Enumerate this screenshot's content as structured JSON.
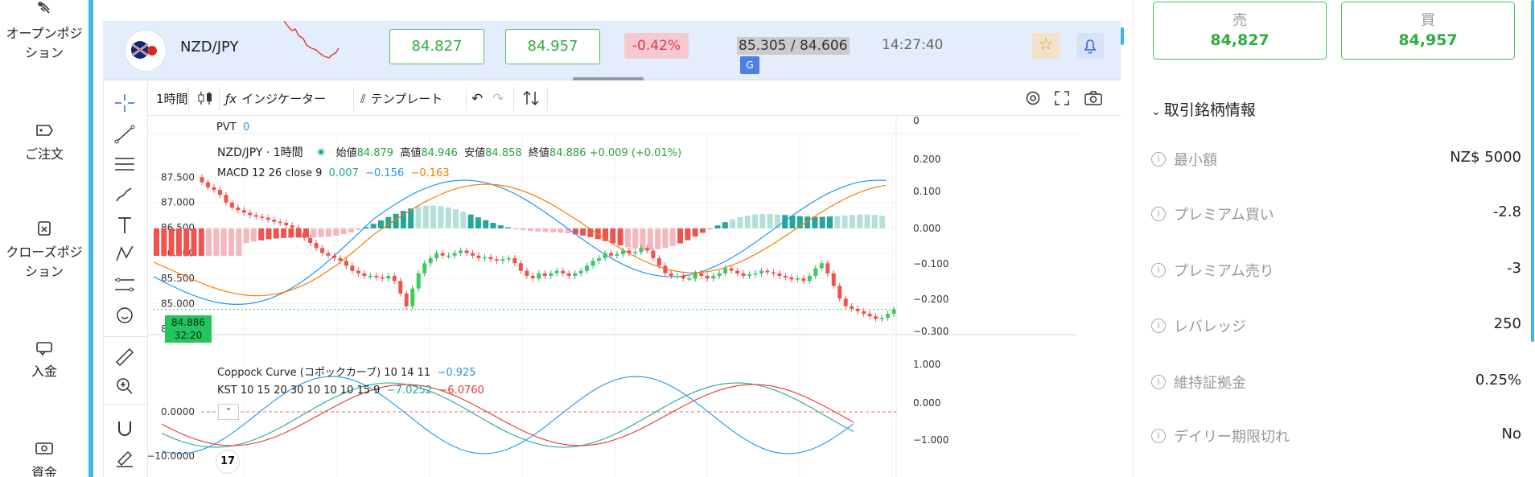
{
  "nav": {
    "items": [
      {
        "label": "オープンポジ\nション",
        "icon": "open-position-icon"
      },
      {
        "label": "ご注文",
        "icon": "order-icon"
      },
      {
        "label": "クローズポジ\nション",
        "icon": "close-position-icon"
      },
      {
        "label": "入金",
        "icon": "deposit-icon"
      },
      {
        "label": "資金",
        "icon": "funds-icon"
      }
    ]
  },
  "instrument": {
    "symbol": "NZD/JPY",
    "sell": "84.827",
    "buy": "84.957",
    "change": "-0.42%",
    "range": "85.305 / 84.606",
    "time": "14:27:40",
    "translate_icon": "G"
  },
  "toolbar": {
    "interval": "1時間",
    "indicators": "インジケーター",
    "templates": "テンプレート"
  },
  "legend": {
    "pvt_label": "PVT",
    "pvt_value": "0",
    "symbol": "NZD/JPY",
    "interval": "1時間",
    "open_label": "始値",
    "open": "84.879",
    "high_label": "高値",
    "high": "84.946",
    "low_label": "安値",
    "low": "84.858",
    "close_label": "終値",
    "close": "84.886",
    "delta": "+0.009 (+0.01%)",
    "macd_label": "MACD",
    "macd_params": "12 26 close 9",
    "macd_v1": "0.007",
    "macd_v2": "−0.156",
    "macd_v3": "−0.163",
    "coppock_label": "Coppock Curve (コポックカーブ)",
    "coppock_params": "10 14 11",
    "coppock_value": "−0.925",
    "kst_label": "KST",
    "kst_params": "10 15 20 30 10 10 10 15 9",
    "kst_v1": "−7.0252",
    "kst_v2": "−6.0760"
  },
  "price_tag": {
    "price": "84.886",
    "countdown": "32:20"
  },
  "chart_data": {
    "type": "candlestick",
    "price_axis_ticks": [
      "87.500",
      "87.000",
      "86.500",
      "86.000",
      "85.500",
      "85.000",
      "84.500"
    ],
    "macd_axis_ticks": [
      "0",
      "0.200",
      "0.100",
      "0.000",
      "−0.100",
      "−0.200",
      "−0.300"
    ],
    "lower_left_ticks": [
      "0.0000",
      "−10.0000"
    ],
    "lower_right_ticks": [
      "1.000",
      "0.000",
      "−1.000"
    ],
    "price_range": [
      84.5,
      87.6
    ],
    "closes": [
      87.4,
      87.3,
      87.25,
      87.15,
      87.0,
      86.9,
      86.85,
      86.8,
      86.75,
      86.72,
      86.7,
      86.66,
      86.62,
      86.6,
      86.55,
      86.5,
      86.4,
      86.3,
      86.2,
      86.1,
      86.0,
      85.95,
      85.9,
      85.85,
      85.75,
      85.65,
      85.6,
      85.55,
      85.55,
      85.52,
      85.5,
      85.55,
      85.45,
      85.2,
      84.95,
      85.3,
      85.6,
      85.8,
      85.9,
      86.0,
      85.95,
      85.95,
      86.0,
      86.05,
      86.0,
      85.95,
      85.9,
      85.92,
      85.88,
      85.85,
      85.88,
      85.9,
      85.8,
      85.65,
      85.55,
      85.5,
      85.6,
      85.55,
      85.6,
      85.65,
      85.6,
      85.55,
      85.6,
      85.65,
      85.75,
      85.85,
      85.9,
      86.0,
      85.95,
      85.98,
      86.05,
      86.0,
      86.02,
      86.1,
      86.05,
      85.9,
      85.75,
      85.6,
      85.55,
      85.55,
      85.5,
      85.5,
      85.6,
      85.55,
      85.5,
      85.55,
      85.6,
      85.7,
      85.65,
      85.6,
      85.55,
      85.58,
      85.6,
      85.65,
      85.62,
      85.6,
      85.55,
      85.52,
      85.48,
      85.5,
      85.45,
      85.55,
      85.7,
      85.8,
      85.6,
      85.35,
      85.1,
      84.95,
      84.9,
      84.85,
      84.8,
      84.75,
      84.7,
      84.72,
      84.8,
      84.886
    ]
  }
}
